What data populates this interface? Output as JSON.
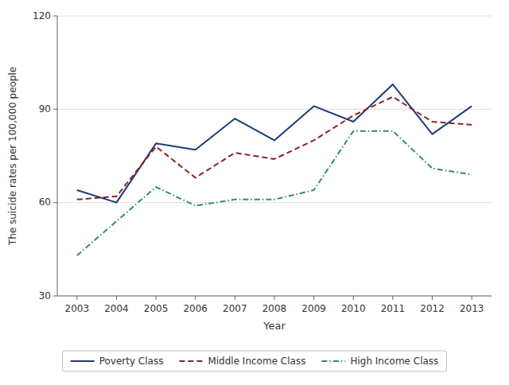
{
  "chart_data": {
    "type": "line",
    "xlabel": "Year",
    "ylabel": "The suicide rates per 100,000 people",
    "x": [
      2003,
      2004,
      2005,
      2006,
      2007,
      2008,
      2009,
      2010,
      2011,
      2012,
      2013
    ],
    "series": [
      {
        "name": "Poverty Class",
        "color": "#1f3a7a",
        "line_style": "solid",
        "values": [
          64,
          60,
          79,
          77,
          87,
          80,
          91,
          86,
          98,
          82,
          91
        ]
      },
      {
        "name": "Middle Income Class",
        "color": "#8b2222",
        "line_style": "dashed",
        "values": [
          61,
          62,
          78,
          68,
          76,
          74,
          80,
          88,
          94,
          86,
          85
        ]
      },
      {
        "name": "High Income Class",
        "color": "#2e8b7a",
        "line_style": "dashdot",
        "values": [
          43,
          54,
          65,
          59,
          61,
          61,
          64,
          83,
          83,
          71,
          69
        ]
      }
    ],
    "xlim": [
      2002.5,
      2013.5
    ],
    "xticks": [
      2003,
      2004,
      2005,
      2006,
      2007,
      2008,
      2009,
      2010,
      2011,
      2012,
      2013
    ],
    "ylim": [
      30,
      120
    ],
    "yticks": [
      30,
      60,
      90,
      120
    ],
    "grid": "y",
    "legend": "bottom"
  }
}
